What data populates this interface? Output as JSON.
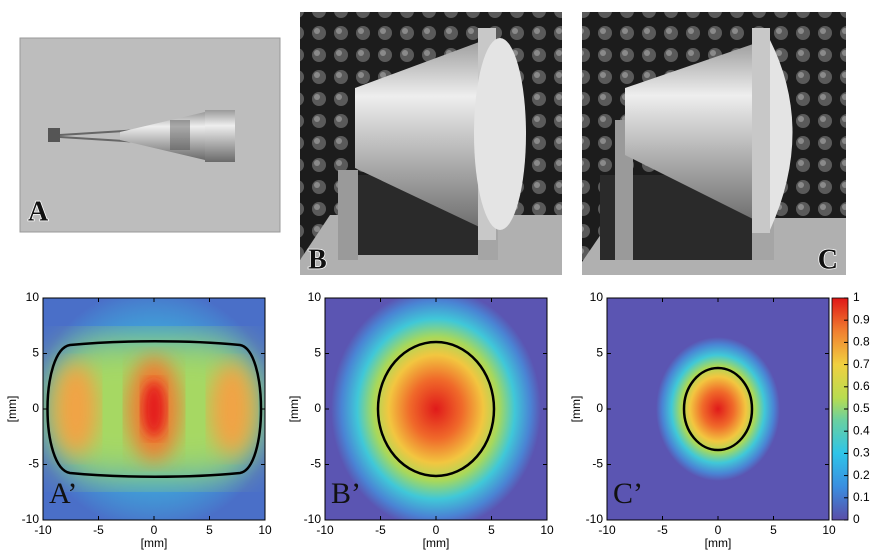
{
  "photos": [
    {
      "label": "A"
    },
    {
      "label": "B"
    },
    {
      "label": "C"
    }
  ],
  "chart_data": [
    {
      "type": "heatmap",
      "label": "A’",
      "xlabel": "[mm]",
      "ylabel": "[mm]",
      "xlim": [
        -10,
        10
      ],
      "ylim": [
        -10,
        10
      ],
      "xticks": [
        -10,
        -5,
        0,
        5,
        10
      ],
      "yticks": [
        -10,
        -5,
        0,
        5,
        10
      ]
    },
    {
      "type": "heatmap",
      "label": "B’",
      "xlabel": "[mm]",
      "ylabel": "[mm]",
      "xlim": [
        -10,
        10
      ],
      "ylim": [
        -10,
        10
      ],
      "xticks": [
        -10,
        -5,
        0,
        5,
        10
      ],
      "yticks": [
        -10,
        -5,
        0,
        5,
        10
      ]
    },
    {
      "type": "heatmap",
      "label": "C’",
      "xlabel": "[mm]",
      "ylabel": "[mm]",
      "xlim": [
        -10,
        10
      ],
      "ylim": [
        -10,
        10
      ],
      "xticks": [
        -10,
        -5,
        0,
        5,
        10
      ],
      "yticks": [
        -10,
        -5,
        0,
        5,
        10
      ],
      "colorbar_lim": [
        0,
        1
      ],
      "colorbar_ticks": [
        0,
        0.1,
        0.2,
        0.3,
        0.4,
        0.5,
        0.6,
        0.7,
        0.8,
        0.9,
        1
      ]
    }
  ]
}
